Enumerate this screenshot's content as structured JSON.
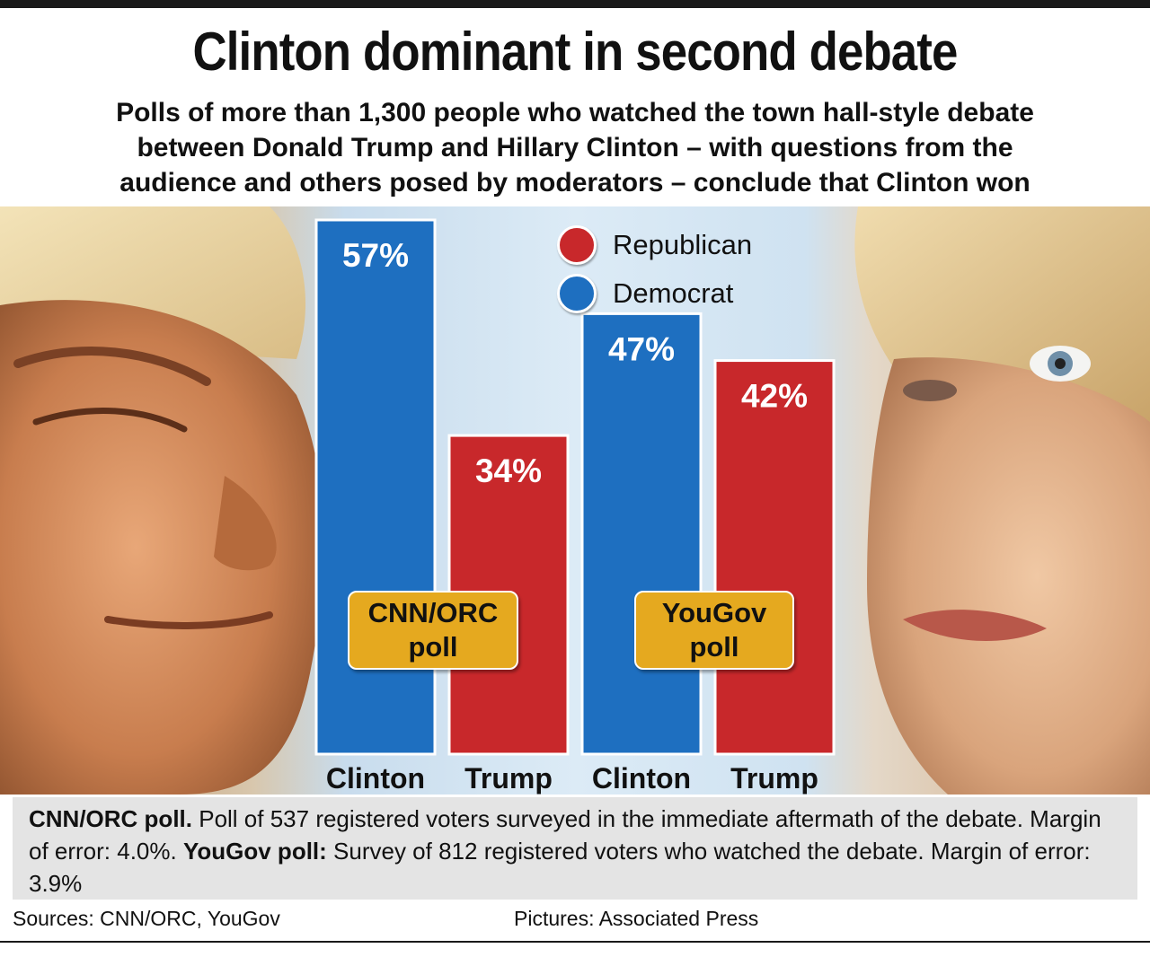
{
  "title": "Clinton dominant in second debate",
  "subtitle": [
    "Polls of more than 1,300 people who watched the town hall-style debate",
    "between Donald Trump and Hillary Clinton – with questions from the",
    "audience and others posed by moderators – conclude that Clinton won"
  ],
  "legend": [
    {
      "label": "Republican",
      "color": "#c8282b"
    },
    {
      "label": "Democrat",
      "color": "#1e6fc0"
    }
  ],
  "chart_data": {
    "type": "bar",
    "groups": [
      {
        "name_lines": [
          "CNN/ORC",
          "poll"
        ],
        "categories": [
          "Clinton",
          "Trump"
        ],
        "values": [
          57,
          34
        ],
        "value_labels": [
          "57%",
          "34%"
        ],
        "colors": [
          "#1e6fc0",
          "#c8282b"
        ]
      },
      {
        "name_lines": [
          "YouGov",
          "poll"
        ],
        "categories": [
          "Clinton",
          "Trump"
        ],
        "values": [
          47,
          42
        ],
        "value_labels": [
          "47%",
          "42%"
        ],
        "colors": [
          "#1e6fc0",
          "#c8282b"
        ]
      }
    ],
    "ylim": [
      0,
      57
    ],
    "grid": false,
    "legend_position": "top-center"
  },
  "footnote": {
    "cnn_label": "CNN/ORC poll.",
    "cnn_text": " Poll of 537 registered voters surveyed in the immediate aftermath of the debate. Margin of error: 4.0%. ",
    "yougov_label": "YouGov poll:",
    "yougov_text": " Survey of 812 registered voters who watched the debate. Margin of error: 3.9%"
  },
  "sources": "Sources: CNN/ORC, YouGov",
  "credit": "Pictures: Associated Press"
}
